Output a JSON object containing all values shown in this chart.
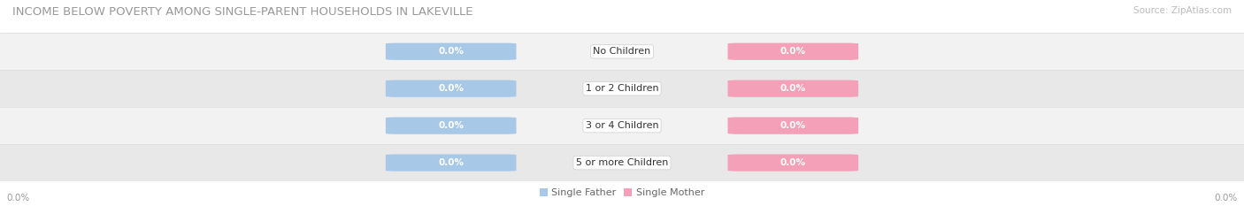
{
  "title": "INCOME BELOW POVERTY AMONG SINGLE-PARENT HOUSEHOLDS IN LAKEVILLE",
  "source": "Source: ZipAtlas.com",
  "categories": [
    "No Children",
    "1 or 2 Children",
    "3 or 4 Children",
    "5 or more Children"
  ],
  "single_father_values": [
    0.0,
    0.0,
    0.0,
    0.0
  ],
  "single_mother_values": [
    0.0,
    0.0,
    0.0,
    0.0
  ],
  "father_color": "#a8c8e8",
  "mother_color": "#f4a0b8",
  "title_fontsize": 9.5,
  "source_fontsize": 7.5,
  "label_fontsize": 7.5,
  "cat_fontsize": 8,
  "axis_label": "0.0%",
  "background_color": "#ffffff",
  "row_bg_colors": [
    "#f2f2f2",
    "#e8e8e8"
  ],
  "row_line_color": "#dddddd"
}
